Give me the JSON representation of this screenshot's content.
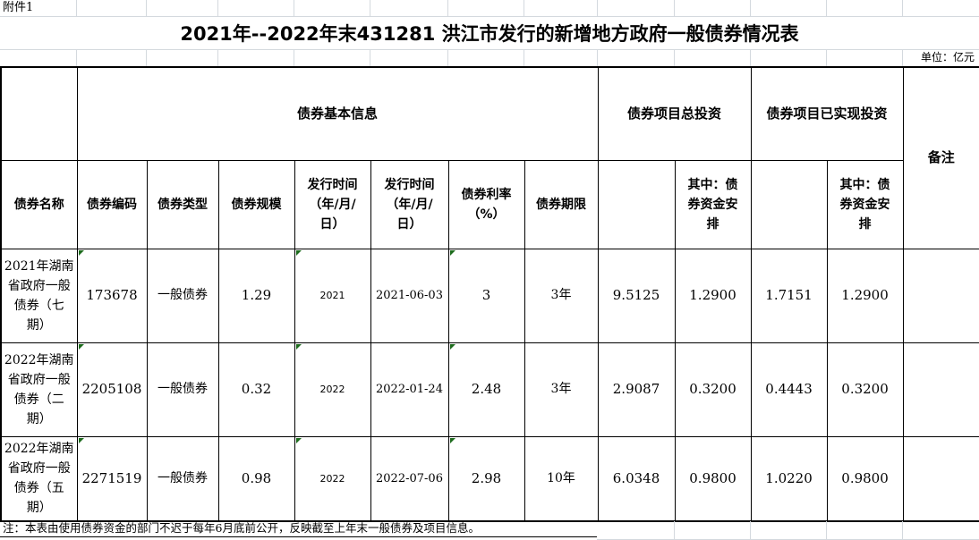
{
  "attachment_label": "附件1",
  "title": "2021年--2022年末431281 洪江市发行的新增地方政府一般债券情况表",
  "unit_label": "单位：亿元",
  "colors": {
    "background": "#ffffff",
    "table_border": "#000000",
    "gridline": "#d4d9de",
    "error_indicator_green": "#1c6b1c",
    "text": "#000000"
  },
  "table": {
    "group_header": {
      "basic_info": "债券基本信息",
      "total_investment": "债券项目总投资",
      "realized_investment": "债券项目已实现投资",
      "remarks": "备注"
    },
    "column_headers": [
      "债券名称",
      "债券编码",
      "债券类型",
      "债券规模",
      "发行时间\n（年/月/\n日）",
      "发行时间\n（年/月/\n日）",
      "债券利率\n（%）",
      "债券期限",
      "",
      "其中：债\n券资金安\n排",
      "",
      "其中：债\n券资金安\n排"
    ],
    "rows": [
      {
        "name": "2021年湖南\n省政府一般\n债券（七\n期）",
        "code": "173678",
        "type": "一般债券",
        "scale": "1.29",
        "issue_year": "2021",
        "issue_date": "2021-06-03",
        "rate": "3",
        "term": "3年",
        "total_investment": "9.5125",
        "total_bond_fund": "1.2900",
        "realized_investment": "1.7151",
        "realized_bond_fund": "1.2900",
        "remarks": ""
      },
      {
        "name": "2022年湖南\n省政府一般\n债券（二\n期）",
        "code": "2205108",
        "type": "一般债券",
        "scale": "0.32",
        "issue_year": "2022",
        "issue_date": "2022-01-24",
        "rate": "2.48",
        "term": "3年",
        "total_investment": "2.9087",
        "total_bond_fund": "0.3200",
        "realized_investment": "0.4443",
        "realized_bond_fund": "0.3200",
        "remarks": ""
      },
      {
        "name": "2022年湖南\n省政府一般\n债券（五\n期）",
        "code": "2271519",
        "type": "一般债券",
        "scale": "0.98",
        "issue_year": "2022",
        "issue_date": "2022-07-06",
        "rate": "2.98",
        "term": "10年",
        "total_investment": "6.0348",
        "total_bond_fund": "0.9800",
        "realized_investment": "1.0220",
        "realized_bond_fund": "0.9800",
        "remarks": ""
      }
    ]
  },
  "footnote": "注：本表由使用债券资金的部门不迟于每年6月底前公开，反映截至上年末一般债券及项目信息。"
}
